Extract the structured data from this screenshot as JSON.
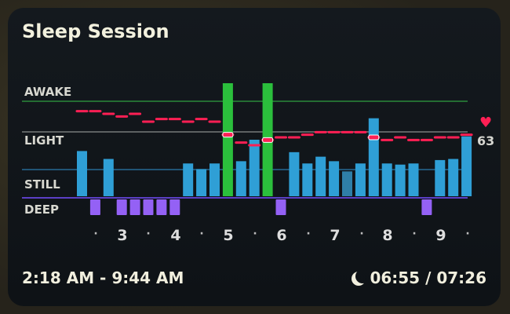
{
  "card": {
    "title": "Sleep Session",
    "levels": {
      "awake": "AWAKE",
      "light": "LIGHT",
      "still": "STILL",
      "deep": "DEEP"
    },
    "heart_rate": "63",
    "hours": [
      "3",
      "4",
      "5",
      "6",
      "7",
      "8",
      "9"
    ],
    "time_range": "2:18 AM - 9:44 AM",
    "duration": "06:55 / 07:26"
  },
  "colors": {
    "still": "#2f9fd6",
    "still_dim": "#2f7fa8",
    "awake": "#2bbf3c",
    "deep": "#9461f5",
    "heart": "#ff1f54",
    "awake_line": "#2b8a3a",
    "light_line": "#777a7a",
    "still_line": "#276a94",
    "deep_line": "#5b3fc5"
  },
  "chart_data": {
    "type": "bar",
    "levels": [
      "DEEP",
      "STILL",
      "LIGHT",
      "AWAKE"
    ],
    "bars": [
      {
        "kind": "still",
        "value": 0.4
      },
      {
        "kind": "none",
        "value": 0
      },
      {
        "kind": "still",
        "value": 0.33
      },
      {
        "kind": "none",
        "value": 0
      },
      {
        "kind": "none",
        "value": 0
      },
      {
        "kind": "none",
        "value": 0
      },
      {
        "kind": "none",
        "value": 0
      },
      {
        "kind": "none",
        "value": 0
      },
      {
        "kind": "still",
        "value": 0.29
      },
      {
        "kind": "still",
        "value": 0.24
      },
      {
        "kind": "still",
        "value": 0.29
      },
      {
        "kind": "awake",
        "value": 1.0
      },
      {
        "kind": "still",
        "value": 0.31
      },
      {
        "kind": "still",
        "value": 0.5
      },
      {
        "kind": "awake",
        "value": 1.0
      },
      {
        "kind": "none",
        "value": 0
      },
      {
        "kind": "still",
        "value": 0.39
      },
      {
        "kind": "still",
        "value": 0.29
      },
      {
        "kind": "still",
        "value": 0.35
      },
      {
        "kind": "still",
        "value": 0.31
      },
      {
        "kind": "still_dim",
        "value": 0.22
      },
      {
        "kind": "still",
        "value": 0.29
      },
      {
        "kind": "still",
        "value": 0.69
      },
      {
        "kind": "still",
        "value": 0.29
      },
      {
        "kind": "still",
        "value": 0.28
      },
      {
        "kind": "still",
        "value": 0.29
      },
      {
        "kind": "none",
        "value": 0
      },
      {
        "kind": "still",
        "value": 0.32
      },
      {
        "kind": "still",
        "value": 0.33
      },
      {
        "kind": "still",
        "value": 0.53
      }
    ],
    "deep_bins": [
      1,
      3,
      4,
      5,
      6,
      7,
      15,
      26
    ],
    "heart_rate_series": [
      73,
      73,
      72,
      71,
      72,
      69,
      70,
      70,
      69,
      70,
      69,
      64,
      61,
      60,
      62,
      63,
      63,
      64,
      65,
      65,
      65,
      65,
      63,
      62,
      63,
      62,
      62,
      63,
      63,
      64
    ],
    "heart_rate_markers": [
      11,
      14,
      22
    ]
  }
}
